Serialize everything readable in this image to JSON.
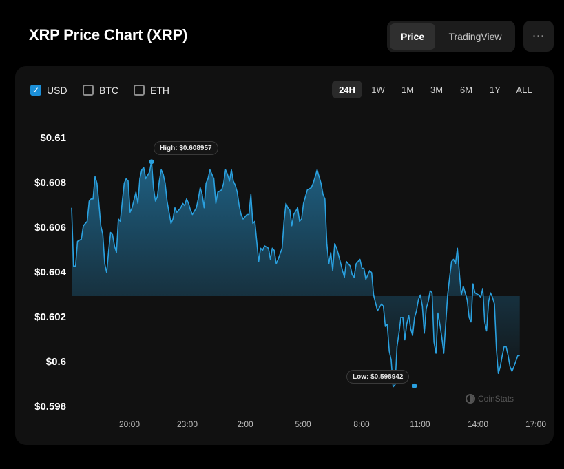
{
  "header": {
    "title": "XRP Price Chart (XRP)",
    "tabs": [
      "Price",
      "TradingView"
    ],
    "active_tab": "Price",
    "more_icon": "⋯"
  },
  "currencies": [
    {
      "label": "USD",
      "checked": true
    },
    {
      "label": "BTC",
      "checked": false
    },
    {
      "label": "ETH",
      "checked": false
    }
  ],
  "ranges": [
    "24H",
    "1W",
    "1M",
    "3M",
    "6M",
    "1Y",
    "ALL"
  ],
  "active_range": "24H",
  "watermark": "CoinStats",
  "colors": {
    "line": "#2aa1e0",
    "accent": "#1b8fd8",
    "background": "#000000",
    "card": "#111111"
  },
  "chart_data": {
    "type": "area",
    "title": "XRP Price Chart (XRP)",
    "ylim": [
      0.598,
      0.611
    ],
    "y_ticks": [
      "$0.61",
      "$0.608",
      "$0.606",
      "$0.604",
      "$0.602",
      "$0.6",
      "$0.598"
    ],
    "y_tick_values": [
      0.61,
      0.608,
      0.606,
      0.604,
      0.602,
      0.6,
      0.598
    ],
    "x_ticks": [
      "20:00",
      "23:00",
      "2:00",
      "5:00",
      "8:00",
      "11:00",
      "14:00",
      "17:00"
    ],
    "x_tick_hours": [
      3,
      6,
      9,
      12,
      15,
      18,
      21,
      24
    ],
    "x_hours_range": [
      0,
      24.6
    ],
    "high": {
      "label": "High: $0.608957",
      "value": 0.608957,
      "hour": 4.1
    },
    "low": {
      "label": "Low: $0.598942",
      "value": 0.598942,
      "hour": 17.6
    },
    "series": [
      {
        "values": [
          [
            0.0,
            0.6069
          ],
          [
            0.1,
            0.6043
          ],
          [
            0.2,
            0.6043
          ],
          [
            0.3,
            0.6054
          ],
          [
            0.5,
            0.6055
          ],
          [
            0.6,
            0.6061
          ],
          [
            0.8,
            0.6063
          ],
          [
            0.9,
            0.6072
          ],
          [
            1.0,
            0.6073
          ],
          [
            1.1,
            0.6073
          ],
          [
            1.2,
            0.6083
          ],
          [
            1.3,
            0.608
          ],
          [
            1.4,
            0.6071
          ],
          [
            1.5,
            0.6061
          ],
          [
            1.6,
            0.6057
          ],
          [
            1.7,
            0.6044
          ],
          [
            1.8,
            0.604
          ],
          [
            1.9,
            0.605
          ],
          [
            2.0,
            0.6058
          ],
          [
            2.1,
            0.6057
          ],
          [
            2.2,
            0.6052
          ],
          [
            2.3,
            0.6049
          ],
          [
            2.4,
            0.6064
          ],
          [
            2.5,
            0.6063
          ],
          [
            2.6,
            0.6072
          ],
          [
            2.7,
            0.608
          ],
          [
            2.8,
            0.6082
          ],
          [
            2.9,
            0.6081
          ],
          [
            3.0,
            0.6067
          ],
          [
            3.1,
            0.6069
          ],
          [
            3.3,
            0.6076
          ],
          [
            3.4,
            0.6071
          ],
          [
            3.5,
            0.6082
          ],
          [
            3.6,
            0.6086
          ],
          [
            3.7,
            0.6087
          ],
          [
            3.8,
            0.6082
          ],
          [
            4.0,
            0.6085
          ],
          [
            4.1,
            0.609
          ],
          [
            4.2,
            0.6078
          ],
          [
            4.3,
            0.6072
          ],
          [
            4.4,
            0.6074
          ],
          [
            4.5,
            0.6081
          ],
          [
            4.6,
            0.6086
          ],
          [
            4.7,
            0.6084
          ],
          [
            4.8,
            0.608
          ],
          [
            4.9,
            0.6072
          ],
          [
            5.1,
            0.6062
          ],
          [
            5.2,
            0.6064
          ],
          [
            5.3,
            0.6069
          ],
          [
            5.4,
            0.6067
          ],
          [
            5.6,
            0.6069
          ],
          [
            5.7,
            0.6071
          ],
          [
            5.8,
            0.607
          ],
          [
            5.9,
            0.6073
          ],
          [
            6.0,
            0.6071
          ],
          [
            6.1,
            0.6068
          ],
          [
            6.2,
            0.6066
          ],
          [
            6.4,
            0.6069
          ],
          [
            6.5,
            0.6073
          ],
          [
            6.6,
            0.6078
          ],
          [
            6.7,
            0.6075
          ],
          [
            6.8,
            0.6069
          ],
          [
            6.9,
            0.608
          ],
          [
            7.0,
            0.6082
          ],
          [
            7.1,
            0.6086
          ],
          [
            7.3,
            0.6082
          ],
          [
            7.4,
            0.6071
          ],
          [
            7.5,
            0.6076
          ],
          [
            7.7,
            0.6077
          ],
          [
            7.8,
            0.608
          ],
          [
            7.9,
            0.6086
          ],
          [
            8.0,
            0.6084
          ],
          [
            8.1,
            0.6081
          ],
          [
            8.2,
            0.6086
          ],
          [
            8.3,
            0.6081
          ],
          [
            8.4,
            0.6079
          ],
          [
            8.5,
            0.6076
          ],
          [
            8.6,
            0.607
          ],
          [
            8.7,
            0.6066
          ],
          [
            8.8,
            0.6064
          ],
          [
            9.0,
            0.6066
          ],
          [
            9.1,
            0.6066
          ],
          [
            9.2,
            0.6075
          ],
          [
            9.3,
            0.6062
          ],
          [
            9.4,
            0.6063
          ],
          [
            9.5,
            0.6054
          ],
          [
            9.6,
            0.6045
          ],
          [
            9.7,
            0.6051
          ],
          [
            9.8,
            0.605
          ],
          [
            9.9,
            0.6052
          ],
          [
            10.1,
            0.6051
          ],
          [
            10.2,
            0.6046
          ],
          [
            10.3,
            0.6051
          ],
          [
            10.4,
            0.605
          ],
          [
            10.5,
            0.6044
          ],
          [
            10.6,
            0.6046
          ],
          [
            10.8,
            0.6051
          ],
          [
            10.9,
            0.6063
          ],
          [
            11.0,
            0.6071
          ],
          [
            11.1,
            0.6069
          ],
          [
            11.2,
            0.6068
          ],
          [
            11.3,
            0.6061
          ],
          [
            11.4,
            0.6066
          ],
          [
            11.6,
            0.6069
          ],
          [
            11.7,
            0.6063
          ],
          [
            11.8,
            0.6064
          ],
          [
            11.9,
            0.6071
          ],
          [
            12.0,
            0.6074
          ],
          [
            12.1,
            0.6077
          ],
          [
            12.3,
            0.6078
          ],
          [
            12.4,
            0.608
          ],
          [
            12.5,
            0.6083
          ],
          [
            12.6,
            0.6086
          ],
          [
            12.8,
            0.608
          ],
          [
            12.9,
            0.6075
          ],
          [
            13.0,
            0.6073
          ],
          [
            13.1,
            0.6053
          ],
          [
            13.2,
            0.6044
          ],
          [
            13.3,
            0.6049
          ],
          [
            13.4,
            0.6041
          ],
          [
            13.5,
            0.6053
          ],
          [
            13.6,
            0.6051
          ],
          [
            13.7,
            0.6048
          ],
          [
            13.9,
            0.6041
          ],
          [
            14.0,
            0.6038
          ],
          [
            14.1,
            0.6045
          ],
          [
            14.3,
            0.6043
          ],
          [
            14.4,
            0.6039
          ],
          [
            14.5,
            0.6038
          ],
          [
            14.6,
            0.6044
          ],
          [
            14.8,
            0.6046
          ],
          [
            14.9,
            0.6042
          ],
          [
            15.0,
            0.6042
          ],
          [
            15.1,
            0.6037
          ],
          [
            15.3,
            0.6041
          ],
          [
            15.4,
            0.604
          ],
          [
            15.5,
            0.603
          ],
          [
            15.7,
            0.6023
          ],
          [
            15.9,
            0.6026
          ],
          [
            16.0,
            0.6025
          ],
          [
            16.1,
            0.6016
          ],
          [
            16.2,
            0.6017
          ],
          [
            16.3,
            0.6005
          ],
          [
            16.4,
            0.6001
          ],
          [
            16.5,
            0.5989
          ],
          [
            16.6,
            0.599
          ],
          [
            16.7,
            0.6007
          ],
          [
            16.8,
            0.6013
          ],
          [
            16.9,
            0.602
          ],
          [
            17.0,
            0.602
          ],
          [
            17.1,
            0.601
          ],
          [
            17.2,
            0.6017
          ],
          [
            17.3,
            0.6021
          ],
          [
            17.4,
            0.6015
          ],
          [
            17.5,
            0.6012
          ],
          [
            17.6,
            0.602
          ],
          [
            17.7,
            0.6023
          ],
          [
            17.8,
            0.6028
          ],
          [
            17.9,
            0.603
          ],
          [
            18.0,
            0.6025
          ],
          [
            18.1,
            0.6013
          ],
          [
            18.2,
            0.6024
          ],
          [
            18.3,
            0.6027
          ],
          [
            18.4,
            0.6032
          ],
          [
            18.5,
            0.6031
          ],
          [
            18.6,
            0.6009
          ],
          [
            18.7,
            0.6004
          ],
          [
            18.8,
            0.6022
          ],
          [
            18.9,
            0.6017
          ],
          [
            19.0,
            0.6011
          ],
          [
            19.1,
            0.6004
          ],
          [
            19.3,
            0.603
          ],
          [
            19.4,
            0.6038
          ],
          [
            19.5,
            0.6045
          ],
          [
            19.6,
            0.6046
          ],
          [
            19.7,
            0.6044
          ],
          [
            19.8,
            0.6051
          ],
          [
            19.9,
            0.604
          ],
          [
            20.0,
            0.603
          ],
          [
            20.1,
            0.6034
          ],
          [
            20.3,
            0.6028
          ],
          [
            20.4,
            0.602
          ],
          [
            20.5,
            0.6018
          ],
          [
            20.6,
            0.6035
          ],
          [
            20.7,
            0.6031
          ],
          [
            20.9,
            0.603
          ],
          [
            21.0,
            0.6029
          ],
          [
            21.1,
            0.6033
          ],
          [
            21.2,
            0.6018
          ],
          [
            21.3,
            0.6014
          ],
          [
            21.4,
            0.6027
          ],
          [
            21.5,
            0.6031
          ],
          [
            21.6,
            0.6029
          ],
          [
            21.7,
            0.6026
          ],
          [
            21.8,
            0.6006
          ],
          [
            21.9,
            0.5995
          ],
          [
            22.0,
            0.5998
          ],
          [
            22.1,
            0.6003
          ],
          [
            22.2,
            0.6007
          ],
          [
            22.3,
            0.6007
          ],
          [
            22.4,
            0.6003
          ],
          [
            22.5,
            0.5998
          ],
          [
            22.6,
            0.5996
          ],
          [
            22.7,
            0.5998
          ],
          [
            22.9,
            0.6003
          ],
          [
            23.0,
            0.6003
          ]
        ]
      }
    ]
  }
}
